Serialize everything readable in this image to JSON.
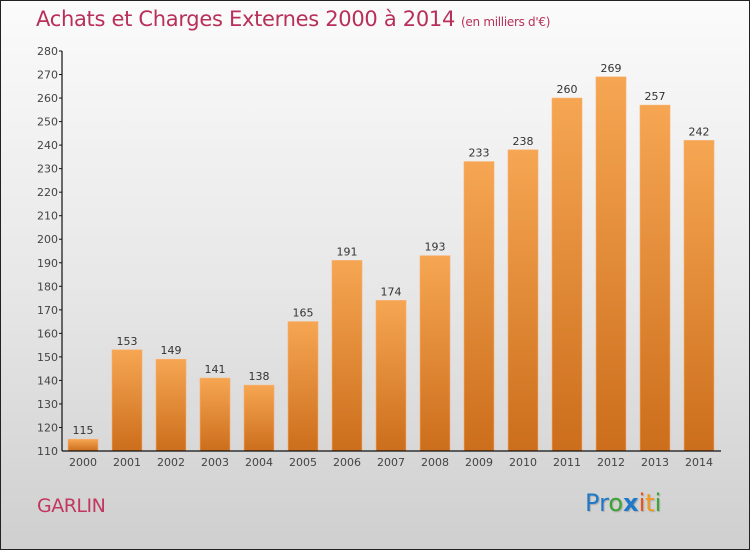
{
  "header": {
    "title": "Achats et Charges Externes 2000 à 2014",
    "subtitle": "(en milliers d'€)"
  },
  "footer": {
    "place": "GARLIN",
    "logo": [
      {
        "ch": "P",
        "color": "#1f78c8"
      },
      {
        "ch": "r",
        "color": "#1f78c8"
      },
      {
        "ch": "o",
        "color": "#3aa535"
      },
      {
        "ch": "x",
        "color": "#1f78c8"
      },
      {
        "ch": "i",
        "color": "#e8561f"
      },
      {
        "ch": "t",
        "color": "#f39a1e"
      },
      {
        "ch": "i",
        "color": "#3aa535"
      }
    ]
  },
  "colors": {
    "bar_top": "#f6a652",
    "bar_bottom": "#cc6e1c",
    "title": "#b8305a"
  },
  "chart_data": {
    "type": "bar",
    "title": "Achats et Charges Externes 2000 à 2014 (en milliers d'€)",
    "xlabel": "",
    "ylabel": "",
    "categories": [
      "2000",
      "2001",
      "2002",
      "2003",
      "2004",
      "2005",
      "2006",
      "2007",
      "2008",
      "2009",
      "2010",
      "2011",
      "2012",
      "2013",
      "2014"
    ],
    "values": [
      115,
      153,
      149,
      141,
      138,
      165,
      191,
      174,
      193,
      233,
      238,
      260,
      269,
      257,
      242
    ],
    "ylim": [
      110,
      280
    ],
    "yticks": [
      110,
      120,
      130,
      140,
      150,
      160,
      170,
      180,
      190,
      200,
      210,
      220,
      230,
      240,
      250,
      260,
      270,
      280
    ],
    "grid": false,
    "legend": "none"
  }
}
